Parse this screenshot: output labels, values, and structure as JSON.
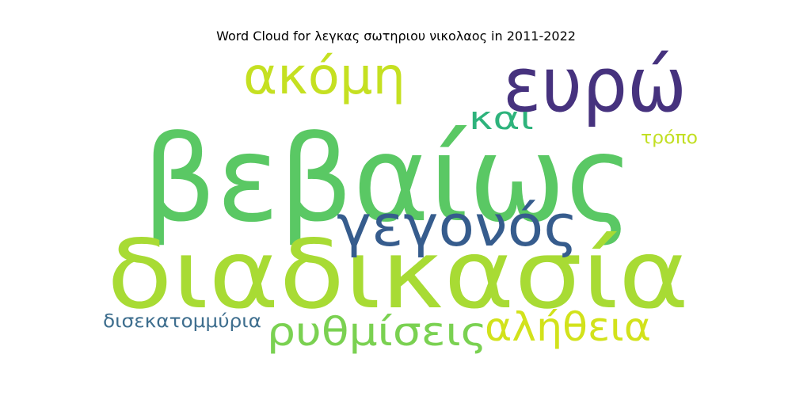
{
  "chart_data": {
    "type": "wordcloud",
    "title": "Word Cloud for λεγκας σωτηριου νικολαος in 2011-2022",
    "words": [
      {
        "text": "βεβαίως",
        "color": "#5ac864"
      },
      {
        "text": "διαδικασία",
        "color": "#a8db34"
      },
      {
        "text": "ευρώ",
        "color": "#46327e"
      },
      {
        "text": "γεγονός",
        "color": "#365c8d"
      },
      {
        "text": "ακόμη",
        "color": "#c5e021"
      },
      {
        "text": "ρυθμίσεις",
        "color": "#7ad151"
      },
      {
        "text": "αλήθεια",
        "color": "#d2e21b"
      },
      {
        "text": "και",
        "color": "#2eb37c"
      },
      {
        "text": "δισεκατομμύρια",
        "color": "#3e6e8e"
      },
      {
        "text": "τρόπο",
        "color": "#c2df23"
      }
    ]
  }
}
